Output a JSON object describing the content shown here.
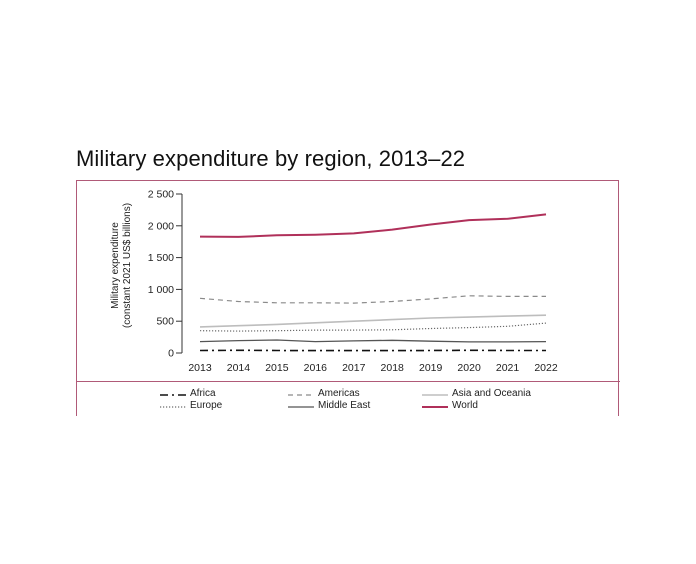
{
  "title": "Military expenditure by region, 2013–22",
  "chart_data": {
    "type": "line",
    "title": "Military expenditure by region, 2013–22",
    "ylabel": [
      "Military expenditure",
      "(constant 2021 US$ billions)"
    ],
    "xlabel": "",
    "x": [
      "2013",
      "2014",
      "2015",
      "2016",
      "2017",
      "2018",
      "2019",
      "2020",
      "2021",
      "2022"
    ],
    "ylim": [
      0,
      2500
    ],
    "yticks": [
      0,
      500,
      1000,
      1500,
      2000,
      2500
    ],
    "ytick_labels": [
      "0",
      "500",
      "1 000",
      "1 500",
      "2 000",
      "2 500"
    ],
    "grid": false,
    "legend_position": "bottom",
    "series": [
      {
        "name": "Africa",
        "style": "dashdot",
        "color": "#111111",
        "width": 1.6,
        "values": [
          40,
          42,
          40,
          38,
          38,
          38,
          40,
          42,
          40,
          40
        ]
      },
      {
        "name": "Americas",
        "style": "dashed",
        "color": "#8a8a8a",
        "width": 1.2,
        "values": [
          860,
          810,
          790,
          790,
          785,
          810,
          850,
          900,
          890,
          890
        ]
      },
      {
        "name": "Asia and Oceania",
        "style": "solid",
        "color": "#bdbdbd",
        "width": 1.6,
        "values": [
          410,
          430,
          450,
          475,
          500,
          525,
          550,
          565,
          580,
          595
        ]
      },
      {
        "name": "Europe",
        "style": "dotted",
        "color": "#6a6a6a",
        "width": 1.2,
        "values": [
          350,
          345,
          350,
          360,
          360,
          365,
          385,
          400,
          420,
          470
        ]
      },
      {
        "name": "Middle East",
        "style": "solid",
        "color": "#555555",
        "width": 1.3,
        "values": [
          180,
          195,
          205,
          180,
          190,
          200,
          185,
          175,
          175,
          180
        ]
      },
      {
        "name": "World",
        "style": "solid",
        "color": "#b0305a",
        "width": 2.0,
        "values": [
          1830,
          1825,
          1850,
          1860,
          1880,
          1940,
          2020,
          2090,
          2110,
          2180
        ]
      }
    ]
  }
}
